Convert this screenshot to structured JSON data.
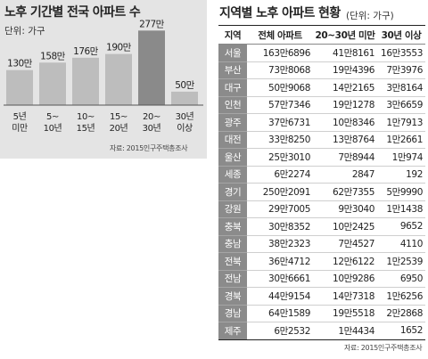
{
  "chart_data": {
    "type": "bar",
    "title": "노후 기간별 전국 아파트 수",
    "unit_label": "단위: 가구",
    "categories": [
      [
        "5년",
        "미만"
      ],
      [
        "5~",
        "10년"
      ],
      [
        "10~",
        "15년"
      ],
      [
        "15~",
        "20년"
      ],
      [
        "20~",
        "30년"
      ],
      [
        "30년",
        "이상"
      ]
    ],
    "values": [
      130,
      158,
      176,
      190,
      277,
      50
    ],
    "value_labels": [
      "130만",
      "158만",
      "176만",
      "190만",
      "277만",
      "50만"
    ],
    "highlight_index": 4,
    "colors": {
      "bar": "#bdbdbd",
      "highlight": "#8a8a8a",
      "background": "#e4e4e4"
    },
    "ylim": [
      0,
      300
    ],
    "source": "자료: 2015인구주택총조사"
  },
  "table": {
    "title": "지역별 노후 아파트 현황",
    "unit_label": "(단위: 가구)",
    "headers": [
      "지역",
      "전체 아파트",
      "20~30년 미만",
      "30년 이상"
    ],
    "rows": [
      [
        "서울",
        "163만6896",
        "41만8161",
        "16만3553"
      ],
      [
        "부산",
        "73만8068",
        "19만4396",
        "7만3976"
      ],
      [
        "대구",
        "50만9068",
        "14만2165",
        "3만8164"
      ],
      [
        "인천",
        "57만7346",
        "19만1278",
        "3만6659"
      ],
      [
        "광주",
        "37만6731",
        "10만8346",
        "1만7913"
      ],
      [
        "대전",
        "33만8250",
        "13만8764",
        "1만2661"
      ],
      [
        "울산",
        "25만3010",
        "7만8944",
        "1만974"
      ],
      [
        "세종",
        "6만2274",
        "2847",
        "192"
      ],
      [
        "경기",
        "250만2091",
        "62만7355",
        "5만9990"
      ],
      [
        "강원",
        "29만7005",
        "9만3040",
        "1만1438"
      ],
      [
        "충북",
        "30만8352",
        "10만2425",
        "9652"
      ],
      [
        "충남",
        "38만2323",
        "7만4527",
        "4110"
      ],
      [
        "전북",
        "36만4712",
        "12만6122",
        "1만2539"
      ],
      [
        "전남",
        "30만6661",
        "10만9286",
        "6950"
      ],
      [
        "경북",
        "44만9154",
        "14만7318",
        "1만6256"
      ],
      [
        "경남",
        "64만1589",
        "19만5518",
        "2만2868"
      ],
      [
        "제주",
        "6만2532",
        "1만4434",
        "1652"
      ]
    ],
    "source": "자료: 2015인구주택총조사"
  }
}
